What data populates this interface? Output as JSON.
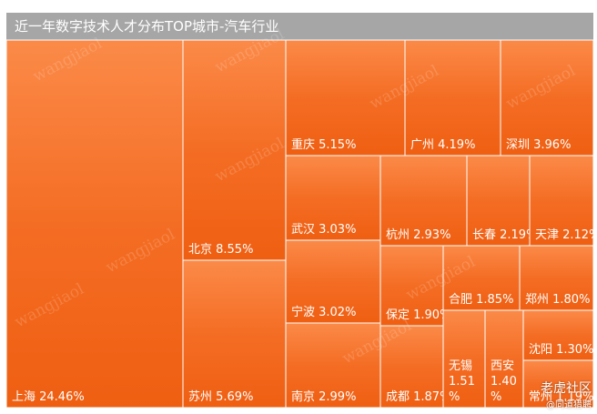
{
  "chart_data": {
    "type": "treemap",
    "title": "近一年数字技术人才分布TOP城市-汽车行业",
    "unit": "%",
    "color": "#f26a1c",
    "watermark": "wangjiaol",
    "items": [
      {
        "name": "上海",
        "value": 24.46,
        "label": "24.46%"
      },
      {
        "name": "北京",
        "value": 8.55,
        "label": "8.55%"
      },
      {
        "name": "苏州",
        "value": 5.69,
        "label": "5.69%"
      },
      {
        "name": "重庆",
        "value": 5.15,
        "label": "5.15%"
      },
      {
        "name": "广州",
        "value": 4.19,
        "label": "4.19%"
      },
      {
        "name": "深圳",
        "value": 3.96,
        "label": "3.96%"
      },
      {
        "name": "武汉",
        "value": 3.03,
        "label": "3.03%"
      },
      {
        "name": "宁波",
        "value": 3.02,
        "label": "3.02%"
      },
      {
        "name": "南京",
        "value": 2.99,
        "label": "2.99%"
      },
      {
        "name": "杭州",
        "value": 2.93,
        "label": "2.93%"
      },
      {
        "name": "长春",
        "value": 2.19,
        "label": "2.19%"
      },
      {
        "name": "天津",
        "value": 2.12,
        "label": "2.12%"
      },
      {
        "name": "保定",
        "value": 1.9,
        "label": "1.90%"
      },
      {
        "name": "成都",
        "value": 1.87,
        "label": "1.87%"
      },
      {
        "name": "合肥",
        "value": 1.85,
        "label": "1.85%"
      },
      {
        "name": "郑州",
        "value": 1.8,
        "label": "1.80%"
      },
      {
        "name": "无锡",
        "value": 1.51,
        "label": "1.51%"
      },
      {
        "name": "西安",
        "value": 1.4,
        "label": "1.40%"
      },
      {
        "name": "沈阳",
        "value": 1.3,
        "label": "1.30%"
      },
      {
        "name": "常州",
        "value": 1.19,
        "label": "1.19%"
      }
    ]
  },
  "brand": {
    "name": "老虎社区",
    "sub": "@同道猎聘"
  }
}
